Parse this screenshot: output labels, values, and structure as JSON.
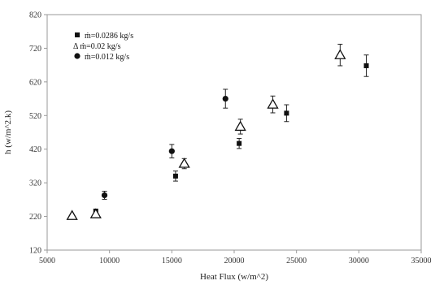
{
  "chart_data": {
    "type": "scatter",
    "title": "",
    "xlabel": "Heat Flux (w/m^2)",
    "ylabel": "h (w/m^2.k)",
    "xlim": [
      5000,
      35000
    ],
    "ylim": [
      120,
      820
    ],
    "x_ticks": [
      "5000",
      "10000",
      "15000",
      "20000",
      "25000",
      "30000",
      "35000"
    ],
    "y_ticks": [
      "120",
      "220",
      "320",
      "420",
      "520",
      "620",
      "720",
      "820"
    ],
    "grid": false,
    "legend_position": "top-left",
    "series": [
      {
        "name": "ṁ=0.0286 kg/s",
        "marker": "square",
        "color": "#111111",
        "points": [
          {
            "x": 8900,
            "y": 236,
            "err": 0
          },
          {
            "x": 15300,
            "y": 340,
            "err": 15
          },
          {
            "x": 20400,
            "y": 437,
            "err": 15
          },
          {
            "x": 24200,
            "y": 527,
            "err": 25
          },
          {
            "x": 30600,
            "y": 668,
            "err": 32
          }
        ]
      },
      {
        "name": "Δ ṁ=0.02     kg/s",
        "marker": "triangle",
        "color": "#111111",
        "points": [
          {
            "x": 7000,
            "y": 222,
            "err": 0
          },
          {
            "x": 8900,
            "y": 227,
            "err": 0
          },
          {
            "x": 16000,
            "y": 377,
            "err": 15
          },
          {
            "x": 20500,
            "y": 487,
            "err": 22
          },
          {
            "x": 23100,
            "y": 553,
            "err": 25
          },
          {
            "x": 28500,
            "y": 700,
            "err": 32
          }
        ]
      },
      {
        "name": "ṁ=0.012 kg/s",
        "marker": "circle",
        "color": "#111111",
        "points": [
          {
            "x": 9600,
            "y": 283,
            "err": 12
          },
          {
            "x": 15000,
            "y": 414,
            "err": 20
          },
          {
            "x": 19300,
            "y": 570,
            "err": 28
          }
        ]
      }
    ]
  }
}
